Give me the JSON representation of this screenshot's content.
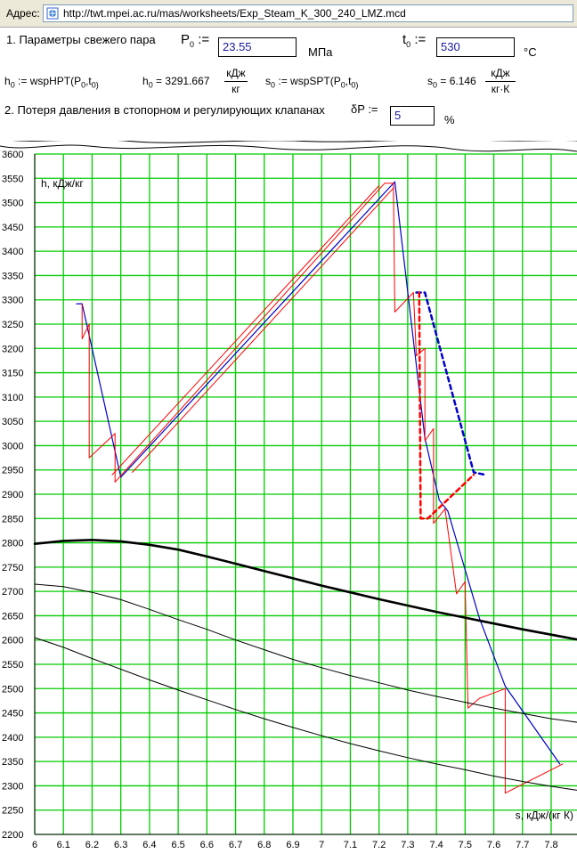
{
  "addressbar": {
    "label": "Адрес:",
    "url": "http://twt.mpei.ac.ru/mas/worksheets/Exp_Steam_K_300_240_LMZ.mcd"
  },
  "sheet": {
    "line1_label": "1. Параметры свежего пара",
    "p0_symbol": "P",
    "p0_sub": "0",
    "assign": ":=",
    "p0_value": "23.55",
    "p0_unit": "МПа",
    "t0_symbol": "t",
    "t0_sub": "0",
    "t0_value": "530",
    "t0_unit": "°C",
    "h0_def": "h",
    "h0_def_sub": "0",
    "h0_func": "wspHPT(P",
    "h0_func_args": "0",
    "h0_func_t": ",t",
    "h0_func_end": "0)",
    "h0_result_sym": "h",
    "h0_result_sub": "0",
    "h0_result": "= 3291.667",
    "h0_unit_num": "кДж",
    "h0_unit_den": "кг",
    "s0_def": "s",
    "s0_def_sub": "0",
    "s0_func": "wspSPT(P",
    "s0_func_args": "0",
    "s0_func_t": ",t",
    "s0_func_end": "0)",
    "s0_result_sym": "s",
    "s0_result_sub": "0",
    "s0_result": "= 6.146",
    "s0_unit_num": "кДж",
    "s0_unit_den": "кг·К",
    "line2_label": "2. Потеря давления в стопорном и регулирующих клапанах",
    "dp_symbol": "δP",
    "dp_value": "5",
    "dp_unit": "%"
  },
  "colors": {
    "grid": "#00cc00",
    "process_blue": "#0000cc",
    "process_red": "#ff0000",
    "saturation_black": "#000000"
  },
  "chart_data": {
    "type": "line",
    "ylabel": "h, кДж/кг",
    "xlabel": "s, кДж/(кг К)",
    "xlim": [
      6.0,
      7.9
    ],
    "ylim": [
      2200,
      3600
    ],
    "x_ticks": [
      "6",
      "6.1",
      "6.2",
      "6.3",
      "6.4",
      "6.5",
      "6.6",
      "6.7",
      "6.8",
      "6.9",
      "7",
      "7.1",
      "7.2",
      "7.3",
      "7.4",
      "7.5",
      "7.6",
      "7.7",
      "7.8"
    ],
    "y_ticks": [
      "2200",
      "2250",
      "2300",
      "2350",
      "2400",
      "2450",
      "2500",
      "2550",
      "2600",
      "2650",
      "2700",
      "2750",
      "2800",
      "2850",
      "2900",
      "2950",
      "3000",
      "3050",
      "3100",
      "3150",
      "3200",
      "3250",
      "3300",
      "3350",
      "3400",
      "3450",
      "3500",
      "3550",
      "3600"
    ],
    "grid": true,
    "series": [
      {
        "color": "#0000cc",
        "width": 1.2,
        "dash": false,
        "points": [
          [
            6.146,
            3292
          ],
          [
            6.165,
            3292
          ],
          [
            6.3,
            2935
          ],
          [
            7.255,
            3543
          ],
          [
            7.36,
            3015
          ],
          [
            7.41,
            2888
          ],
          [
            7.44,
            2865
          ],
          [
            7.55,
            2645
          ],
          [
            7.64,
            2505
          ],
          [
            7.83,
            2345
          ]
        ]
      },
      {
        "color": "#0000cc",
        "width": 2.5,
        "dash": true,
        "points": [
          [
            7.33,
            3315
          ],
          [
            7.36,
            3315
          ],
          [
            7.53,
            2945
          ],
          [
            7.57,
            2940
          ]
        ]
      },
      {
        "color": "#ff0000",
        "width": 2.5,
        "dash": true,
        "points": [
          [
            7.34,
            3315
          ],
          [
            7.345,
            2850
          ],
          [
            7.37,
            2850
          ],
          [
            7.53,
            2940
          ]
        ]
      },
      {
        "color": "#ff0000",
        "width": 1,
        "dash": false,
        "points": [
          [
            6.165,
            3292
          ],
          [
            6.165,
            3220
          ],
          [
            6.19,
            3250
          ],
          [
            6.19,
            2975
          ],
          [
            6.28,
            3025
          ],
          [
            6.28,
            2925
          ],
          [
            6.31,
            2945
          ],
          [
            7.22,
            3540
          ],
          [
            7.25,
            3540
          ],
          [
            7.255,
            3275
          ],
          [
            7.32,
            3315
          ],
          [
            7.33,
            3185
          ],
          [
            7.36,
            3200
          ],
          [
            7.36,
            3010
          ],
          [
            7.39,
            3035
          ],
          [
            7.39,
            2840
          ],
          [
            7.43,
            2870
          ],
          [
            7.47,
            2695
          ],
          [
            7.5,
            2720
          ],
          [
            7.51,
            2460
          ],
          [
            7.55,
            2480
          ],
          [
            7.64,
            2500
          ],
          [
            7.64,
            2285
          ],
          [
            7.84,
            2345
          ]
        ]
      },
      {
        "color": "#ff0000",
        "width": 1,
        "dash": false,
        "points": [
          [
            6.27,
            2940
          ],
          [
            7.2,
            3535
          ]
        ]
      },
      {
        "color": "#ff0000",
        "width": 1,
        "dash": false,
        "points": [
          [
            6.34,
            2945
          ],
          [
            7.25,
            3530
          ]
        ]
      },
      {
        "color": "#000000",
        "width": 2.6,
        "dash": false,
        "points": [
          [
            6.0,
            2798
          ],
          [
            6.1,
            2804
          ],
          [
            6.2,
            2806
          ],
          [
            6.3,
            2803
          ],
          [
            6.4,
            2796
          ],
          [
            6.5,
            2786
          ],
          [
            6.6,
            2772
          ],
          [
            6.7,
            2757
          ],
          [
            6.8,
            2742
          ],
          [
            6.9,
            2727
          ],
          [
            7.0,
            2712
          ],
          [
            7.1,
            2698
          ],
          [
            7.2,
            2684
          ],
          [
            7.3,
            2671
          ],
          [
            7.4,
            2658
          ],
          [
            7.5,
            2646
          ],
          [
            7.6,
            2634
          ],
          [
            7.7,
            2622
          ],
          [
            7.8,
            2611
          ],
          [
            7.9,
            2600
          ]
        ]
      },
      {
        "color": "#000000",
        "width": 1,
        "dash": false,
        "points": [
          [
            6.0,
            2715
          ],
          [
            6.1,
            2710
          ],
          [
            6.2,
            2698
          ],
          [
            6.3,
            2683
          ],
          [
            6.4,
            2663
          ],
          [
            6.5,
            2642
          ],
          [
            6.6,
            2622
          ],
          [
            6.7,
            2600
          ],
          [
            6.8,
            2580
          ],
          [
            6.9,
            2560
          ],
          [
            7.0,
            2543
          ],
          [
            7.1,
            2527
          ],
          [
            7.2,
            2512
          ],
          [
            7.3,
            2497
          ],
          [
            7.4,
            2484
          ],
          [
            7.5,
            2472
          ],
          [
            7.6,
            2460
          ],
          [
            7.7,
            2449
          ],
          [
            7.8,
            2438
          ],
          [
            7.9,
            2430
          ]
        ]
      },
      {
        "color": "#000000",
        "width": 1,
        "dash": false,
        "points": [
          [
            6.0,
            2605
          ],
          [
            6.1,
            2585
          ],
          [
            6.2,
            2562
          ],
          [
            6.3,
            2540
          ],
          [
            6.4,
            2518
          ],
          [
            6.5,
            2497
          ],
          [
            6.6,
            2477
          ],
          [
            6.7,
            2457
          ],
          [
            6.8,
            2438
          ],
          [
            6.9,
            2420
          ],
          [
            7.0,
            2403
          ],
          [
            7.1,
            2387
          ],
          [
            7.2,
            2372
          ],
          [
            7.3,
            2358
          ],
          [
            7.4,
            2345
          ],
          [
            7.5,
            2333
          ],
          [
            7.6,
            2320
          ],
          [
            7.7,
            2309
          ],
          [
            7.8,
            2299
          ],
          [
            7.9,
            2290
          ]
        ]
      }
    ]
  }
}
